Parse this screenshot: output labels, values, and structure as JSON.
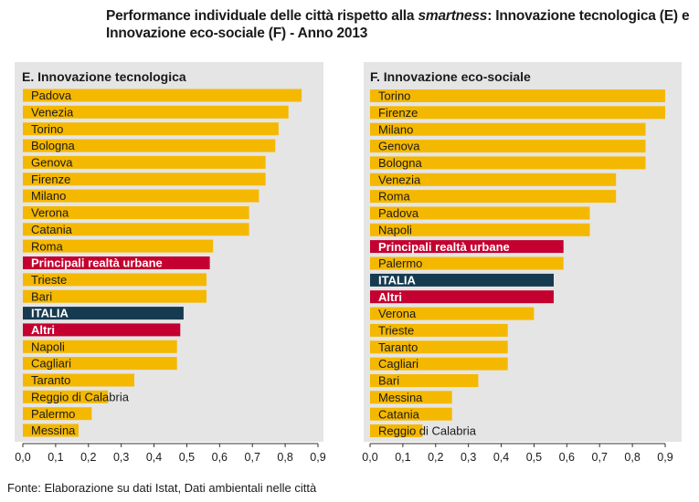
{
  "title": {
    "prefix": "Performance individuale delle città rispetto alla ",
    "italic": "smartness",
    "suffix": ": Innovazione tecnologica (E) e Innovazione eco-sociale (F) - Anno 2013"
  },
  "footer": "Fonte: Elaborazione su dati Istat, Dati ambientali nelle città",
  "colors": {
    "default": "#f5b800",
    "highlight": "#c3002f",
    "italia": "#163a50",
    "panel": "#e5e5e5"
  },
  "chart_data": [
    {
      "type": "bar",
      "orientation": "horizontal",
      "title": "E. Innovazione tecnologica",
      "xlim": [
        0,
        0.9
      ],
      "xticks": [
        "0,0",
        "0,1",
        "0,2",
        "0,3",
        "0,4",
        "0,5",
        "0,6",
        "0,7",
        "0,8",
        "0,9"
      ],
      "categories": [
        "Padova",
        "Venezia",
        "Torino",
        "Bologna",
        "Genova",
        "Firenze",
        "Milano",
        "Verona",
        "Catania",
        "Roma",
        "Principali realtà urbane",
        "Trieste",
        "Bari",
        "ITALIA",
        "Altri",
        "Napoli",
        "Cagliari",
        "Taranto",
        "Reggio di Calabria",
        "Palermo",
        "Messina"
      ],
      "values": [
        0.85,
        0.81,
        0.78,
        0.77,
        0.74,
        0.74,
        0.72,
        0.69,
        0.69,
        0.58,
        0.57,
        0.56,
        0.56,
        0.49,
        0.48,
        0.47,
        0.47,
        0.34,
        0.26,
        0.21,
        0.17
      ],
      "highlight": [
        "Principali realtà urbane",
        "Altri"
      ],
      "italia": [
        "ITALIA"
      ]
    },
    {
      "type": "bar",
      "orientation": "horizontal",
      "title": "F. Innovazione eco-sociale",
      "xlim": [
        0,
        0.9
      ],
      "xticks": [
        "0,0",
        "0,1",
        "0,2",
        "0,3",
        "0,4",
        "0,5",
        "0,6",
        "0,7",
        "0,8",
        "0,9"
      ],
      "categories": [
        "Torino",
        "Firenze",
        "Milano",
        "Genova",
        "Bologna",
        "Venezia",
        "Roma",
        "Padova",
        "Napoli",
        "Principali realtà urbane",
        "Palermo",
        "ITALIA",
        "Altri",
        "Verona",
        "Trieste",
        "Taranto",
        "Cagliari",
        "Bari",
        "Messina",
        "Catania",
        "Reggio di Calabria"
      ],
      "values": [
        0.9,
        0.9,
        0.84,
        0.84,
        0.84,
        0.75,
        0.75,
        0.67,
        0.67,
        0.59,
        0.59,
        0.56,
        0.56,
        0.5,
        0.42,
        0.42,
        0.42,
        0.33,
        0.25,
        0.25,
        0.16
      ],
      "highlight": [
        "Principali realtà urbane",
        "Altri"
      ],
      "italia": [
        "ITALIA"
      ]
    }
  ]
}
